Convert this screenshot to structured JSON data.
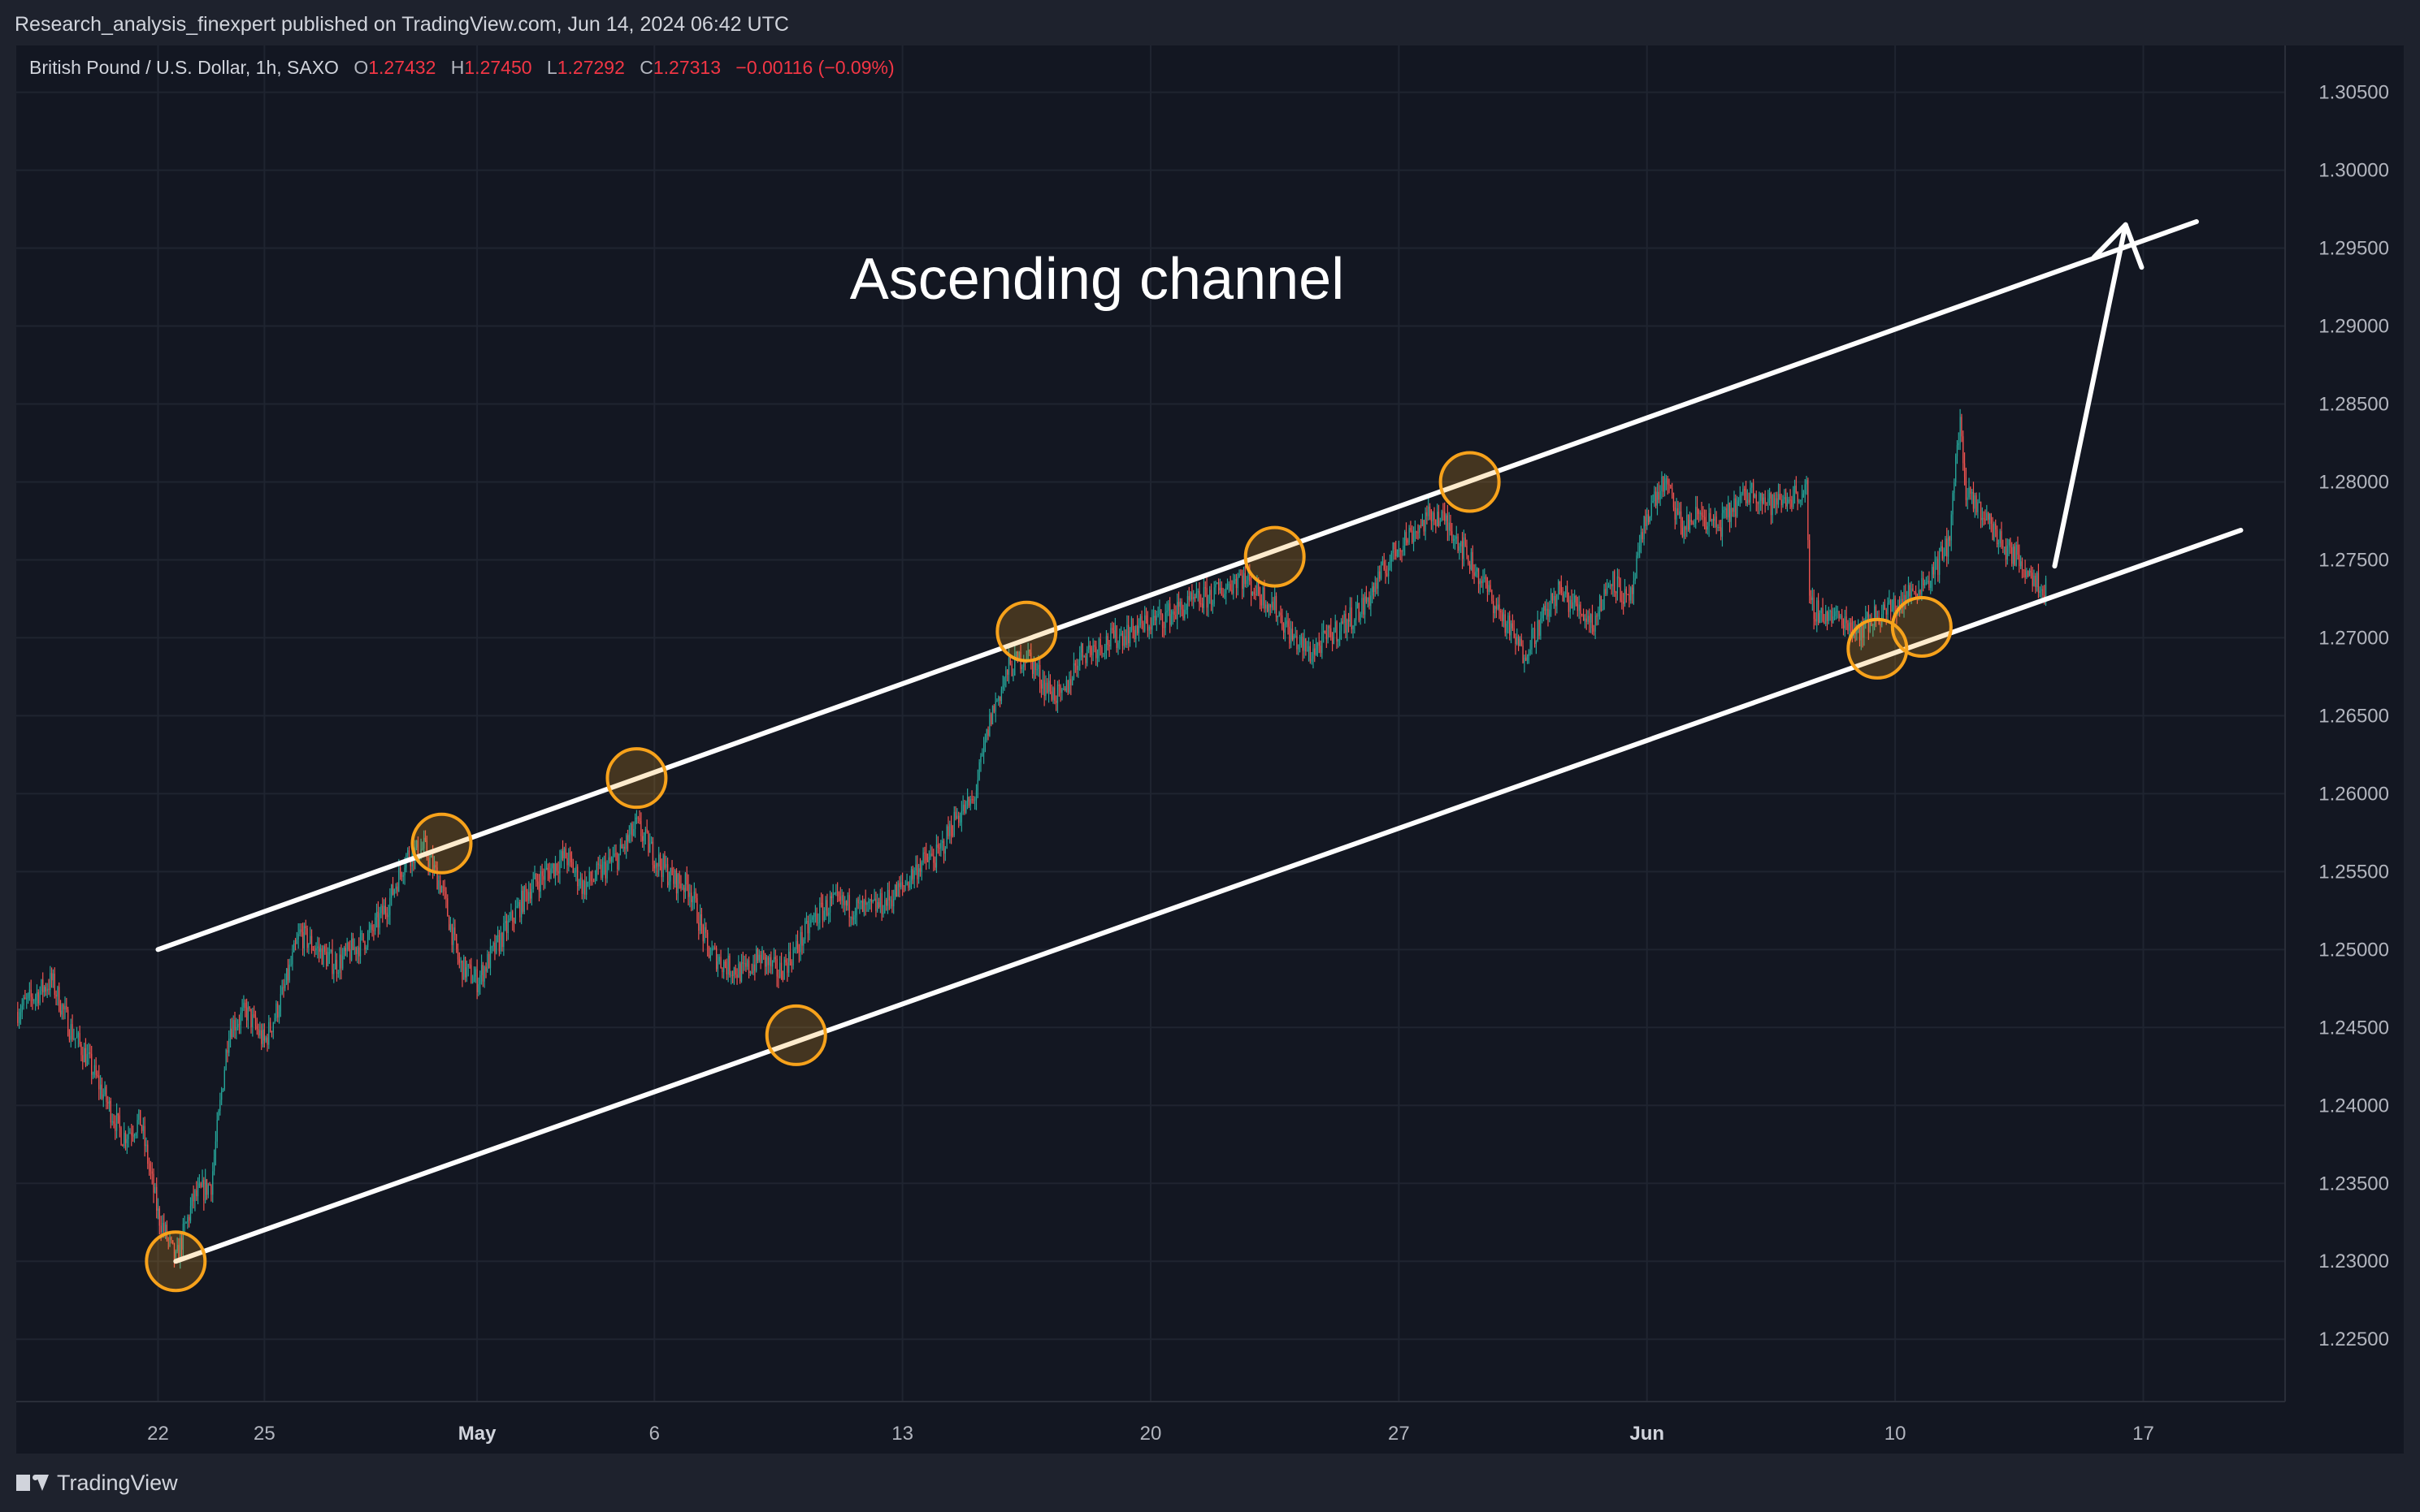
{
  "header": {
    "publisher_line": "Research_analysis_finexpert published on TradingView.com, Jun 14, 2024 06:42 UTC"
  },
  "legend": {
    "symbol": "British Pound / U.S. Dollar, 1h, SAXO",
    "open_label": "O",
    "open": "1.27432",
    "high_label": "H",
    "high": "1.27450",
    "low_label": "L",
    "low": "1.27292",
    "close_label": "C",
    "close": "1.27313",
    "change": "−0.00116 (−0.09%)"
  },
  "footer": {
    "brand": "TradingView"
  },
  "colors": {
    "background": "#131722",
    "frame": "#1e222d",
    "up": "#26a69a",
    "down": "#ef5350",
    "channel": "#ffffff",
    "touch_circle": "#f7a21b",
    "grid": "#1f2430",
    "legend_value": "#f23645"
  },
  "chart_data": {
    "type": "candlestick",
    "title": "",
    "annotation": "Ascending channel",
    "interval": "1h",
    "ylim": [
      1.221,
      1.308
    ],
    "y_ticks": [
      {
        "value": 1.305,
        "label": "1.30500"
      },
      {
        "value": 1.3,
        "label": "1.30000"
      },
      {
        "value": 1.295,
        "label": "1.29500"
      },
      {
        "value": 1.29,
        "label": "1.29000"
      },
      {
        "value": 1.285,
        "label": "1.28500"
      },
      {
        "value": 1.28,
        "label": "1.28000"
      },
      {
        "value": 1.275,
        "label": "1.27500"
      },
      {
        "value": 1.27,
        "label": "1.27000"
      },
      {
        "value": 1.265,
        "label": "1.26500"
      },
      {
        "value": 1.26,
        "label": "1.26000"
      },
      {
        "value": 1.255,
        "label": "1.25500"
      },
      {
        "value": 1.25,
        "label": "1.25000"
      },
      {
        "value": 1.245,
        "label": "1.24500"
      },
      {
        "value": 1.24,
        "label": "1.24000"
      },
      {
        "value": 1.235,
        "label": "1.23500"
      },
      {
        "value": 1.23,
        "label": "1.23000"
      },
      {
        "value": 1.225,
        "label": "1.22500"
      }
    ],
    "xlim": [
      "2024-04-18",
      "2024-06-21"
    ],
    "x_ticks": [
      {
        "date": "2024-04-22",
        "label": "22",
        "bold": false
      },
      {
        "date": "2024-04-25",
        "label": "25",
        "bold": false
      },
      {
        "date": "2024-05-01",
        "label": "May",
        "bold": true
      },
      {
        "date": "2024-05-06",
        "label": "6",
        "bold": false
      },
      {
        "date": "2024-05-13",
        "label": "13",
        "bold": false
      },
      {
        "date": "2024-05-20",
        "label": "20",
        "bold": false
      },
      {
        "date": "2024-05-27",
        "label": "27",
        "bold": false
      },
      {
        "date": "2024-06-03",
        "label": "Jun",
        "bold": true
      },
      {
        "date": "2024-06-10",
        "label": "10",
        "bold": false
      },
      {
        "date": "2024-06-17",
        "label": "17",
        "bold": false
      }
    ],
    "price_path": [
      [
        "2024-04-18 00:00",
        1.246
      ],
      [
        "2024-04-18 12:00",
        1.247
      ],
      [
        "2024-04-19 00:00",
        1.248
      ],
      [
        "2024-04-19 12:00",
        1.245
      ],
      [
        "2024-04-19 18:00",
        1.244
      ],
      [
        "2024-04-20 00:00",
        1.243
      ],
      [
        "2024-04-21 00:00",
        1.238
      ],
      [
        "2024-04-21 12:00",
        1.239
      ],
      [
        "2024-04-22 00:00",
        1.233
      ],
      [
        "2024-04-22 12:00",
        1.23
      ],
      [
        "2024-04-23 00:00",
        1.234
      ],
      [
        "2024-04-23 12:00",
        1.235
      ],
      [
        "2024-04-24 00:00",
        1.245
      ],
      [
        "2024-04-24 12:00",
        1.246
      ],
      [
        "2024-04-25 00:00",
        1.244
      ],
      [
        "2024-04-25 12:00",
        1.247
      ],
      [
        "2024-04-26 00:00",
        1.251
      ],
      [
        "2024-04-26 12:00",
        1.25
      ],
      [
        "2024-04-27 00:00",
        1.249
      ],
      [
        "2024-04-28 00:00",
        1.251
      ],
      [
        "2024-04-28 12:00",
        1.253
      ],
      [
        "2024-04-29 00:00",
        1.256
      ],
      [
        "2024-04-29 12:00",
        1.2565
      ],
      [
        "2024-04-30 00:00",
        1.254
      ],
      [
        "2024-04-30 12:00",
        1.249
      ],
      [
        "2024-05-01 00:00",
        1.248
      ],
      [
        "2024-05-01 12:00",
        1.25
      ],
      [
        "2024-05-02 00:00",
        1.252
      ],
      [
        "2024-05-02 12:00",
        1.254
      ],
      [
        "2024-05-03 00:00",
        1.255
      ],
      [
        "2024-05-03 12:00",
        1.256
      ],
      [
        "2024-05-04 00:00",
        1.254
      ],
      [
        "2024-05-05 00:00",
        1.256
      ],
      [
        "2024-05-05 12:00",
        1.258
      ],
      [
        "2024-05-06 00:00",
        1.256
      ],
      [
        "2024-05-06 12:00",
        1.2545
      ],
      [
        "2024-05-07 00:00",
        1.254
      ],
      [
        "2024-05-07 12:00",
        1.25
      ],
      [
        "2024-05-08 00:00",
        1.249
      ],
      [
        "2024-05-08 12:00",
        1.2485
      ],
      [
        "2024-05-09 00:00",
        1.2495
      ],
      [
        "2024-05-09 12:00",
        1.2485
      ],
      [
        "2024-05-10 00:00",
        1.25
      ],
      [
        "2024-05-10 12:00",
        1.252
      ],
      [
        "2024-05-11 00:00",
        1.253
      ],
      [
        "2024-05-12 00:00",
        1.2525
      ],
      [
        "2024-05-12 12:00",
        1.253
      ],
      [
        "2024-05-13 00:00",
        1.254
      ],
      [
        "2024-05-13 12:00",
        1.2555
      ],
      [
        "2024-05-14 00:00",
        1.256
      ],
      [
        "2024-05-14 12:00",
        1.2585
      ],
      [
        "2024-05-15 00:00",
        1.2595
      ],
      [
        "2024-05-15 12:00",
        1.265
      ],
      [
        "2024-05-16 00:00",
        1.268
      ],
      [
        "2024-05-16 12:00",
        1.269
      ],
      [
        "2024-05-17 00:00",
        1.267
      ],
      [
        "2024-05-17 12:00",
        1.266
      ],
      [
        "2024-05-18 00:00",
        1.269
      ],
      [
        "2024-05-19 00:00",
        1.27
      ],
      [
        "2024-05-19 12:00",
        1.2705
      ],
      [
        "2024-05-20 00:00",
        1.271
      ],
      [
        "2024-05-20 12:00",
        1.2715
      ],
      [
        "2024-05-21 00:00",
        1.272
      ],
      [
        "2024-05-21 12:00",
        1.2725
      ],
      [
        "2024-05-22 00:00",
        1.273
      ],
      [
        "2024-05-22 12:00",
        1.274
      ],
      [
        "2024-05-23 00:00",
        1.273
      ],
      [
        "2024-05-23 12:00",
        1.272
      ],
      [
        "2024-05-24 00:00",
        1.27
      ],
      [
        "2024-05-24 12:00",
        1.269
      ],
      [
        "2024-05-25 00:00",
        1.27
      ],
      [
        "2024-05-26 00:00",
        1.272
      ],
      [
        "2024-05-26 12:00",
        1.274
      ],
      [
        "2024-05-27 00:00",
        1.276
      ],
      [
        "2024-05-27 12:00",
        1.277
      ],
      [
        "2024-05-28 00:00",
        1.278
      ],
      [
        "2024-05-28 12:00",
        1.277
      ],
      [
        "2024-05-29 00:00",
        1.275
      ],
      [
        "2024-05-29 12:00",
        1.273
      ],
      [
        "2024-05-30 00:00",
        1.271
      ],
      [
        "2024-05-30 12:00",
        1.269
      ],
      [
        "2024-05-31 00:00",
        1.271
      ],
      [
        "2024-05-31 12:00",
        1.273
      ],
      [
        "2024-06-01 00:00",
        1.272
      ],
      [
        "2024-06-01 12:00",
        1.271
      ],
      [
        "2024-06-02 00:00",
        1.274
      ],
      [
        "2024-06-02 12:00",
        1.272
      ],
      [
        "2024-06-03 00:00",
        1.278
      ],
      [
        "2024-06-03 12:00",
        1.28
      ],
      [
        "2024-06-04 00:00",
        1.277
      ],
      [
        "2024-06-04 12:00",
        1.278
      ],
      [
        "2024-06-05 00:00",
        1.277
      ],
      [
        "2024-06-05 12:00",
        1.2785
      ],
      [
        "2024-06-06 00:00",
        1.2795
      ],
      [
        "2024-06-06 12:00",
        1.2785
      ],
      [
        "2024-06-07 00:00",
        1.279
      ],
      [
        "2024-06-07 12:00",
        1.2795
      ],
      [
        "2024-06-07 14:00",
        1.272
      ],
      [
        "2024-06-08 00:00",
        1.2715
      ],
      [
        "2024-06-08 12:00",
        1.2712
      ],
      [
        "2024-06-09 00:00",
        1.2705
      ],
      [
        "2024-06-09 12:00",
        1.2715
      ],
      [
        "2024-06-10 00:00",
        1.272
      ],
      [
        "2024-06-10 12:00",
        1.273
      ],
      [
        "2024-06-11 00:00",
        1.274
      ],
      [
        "2024-06-11 12:00",
        1.276
      ],
      [
        "2024-06-11 20:00",
        1.284
      ],
      [
        "2024-06-12 00:00",
        1.279
      ],
      [
        "2024-06-12 12:00",
        1.278
      ],
      [
        "2024-06-13 00:00",
        1.276
      ],
      [
        "2024-06-13 12:00",
        1.275
      ],
      [
        "2024-06-14 00:00",
        1.2738
      ],
      [
        "2024-06-14 06:00",
        1.2731
      ]
    ],
    "channel": {
      "upper": {
        "from": [
          "2024-04-22 00:00",
          1.25
        ],
        "to": [
          "2024-06-18 12:00",
          1.2967
        ]
      },
      "lower": {
        "from": [
          "2024-04-22 12:00",
          1.23
        ],
        "to": [
          "2024-06-19 18:00",
          1.2769
        ]
      },
      "arrow": {
        "from": [
          "2024-06-14 12:00",
          1.2746
        ],
        "to": [
          "2024-06-16 12:00",
          1.2965
        ]
      }
    },
    "touch_points": [
      {
        "date": "2024-04-22 12:00",
        "price": 1.23
      },
      {
        "date": "2024-04-30 00:00",
        "price": 1.2568
      },
      {
        "date": "2024-05-05 12:00",
        "price": 1.261
      },
      {
        "date": "2024-05-10 00:00",
        "price": 1.2445
      },
      {
        "date": "2024-05-16 12:00",
        "price": 1.2704
      },
      {
        "date": "2024-05-23 12:00",
        "price": 1.2752
      },
      {
        "date": "2024-05-29 00:00",
        "price": 1.28
      },
      {
        "date": "2024-06-09 12:00",
        "price": 1.2693
      },
      {
        "date": "2024-06-10 18:00",
        "price": 1.2707
      }
    ]
  }
}
